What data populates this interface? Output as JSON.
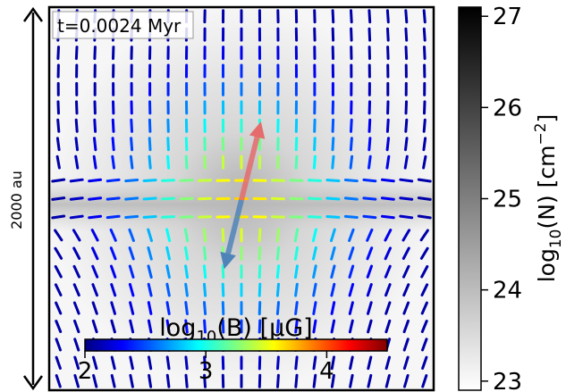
{
  "chart_data": {
    "type": "heatmap",
    "time_label": "t=0.0024 Myr",
    "scale_bar_label": "2000 au",
    "colorbar_column": {
      "label_base": "log",
      "label_sub": "10",
      "label_rest": "(N) [cm",
      "label_sup": "−2",
      "label_end": "]",
      "ticks": [
        "23",
        "24",
        "25",
        "26",
        "27"
      ],
      "range": [
        22.9,
        27.1
      ],
      "colormap": "gray_r"
    },
    "colorbar_field": {
      "label_base": "log",
      "label_sub": "10",
      "label_rest": "(B) [μG]",
      "ticks": [
        "2",
        "3",
        "4"
      ],
      "range": [
        2.0,
        4.5
      ],
      "colormap": "jet"
    },
    "outflow_arrows": [
      {
        "name": "red-lobe",
        "color": "#e46c6c",
        "angle_deg": 76,
        "length": 0.38
      },
      {
        "name": "blue-lobe",
        "color": "#4f84b8",
        "angle_deg": 256,
        "length": 0.33
      }
    ]
  }
}
